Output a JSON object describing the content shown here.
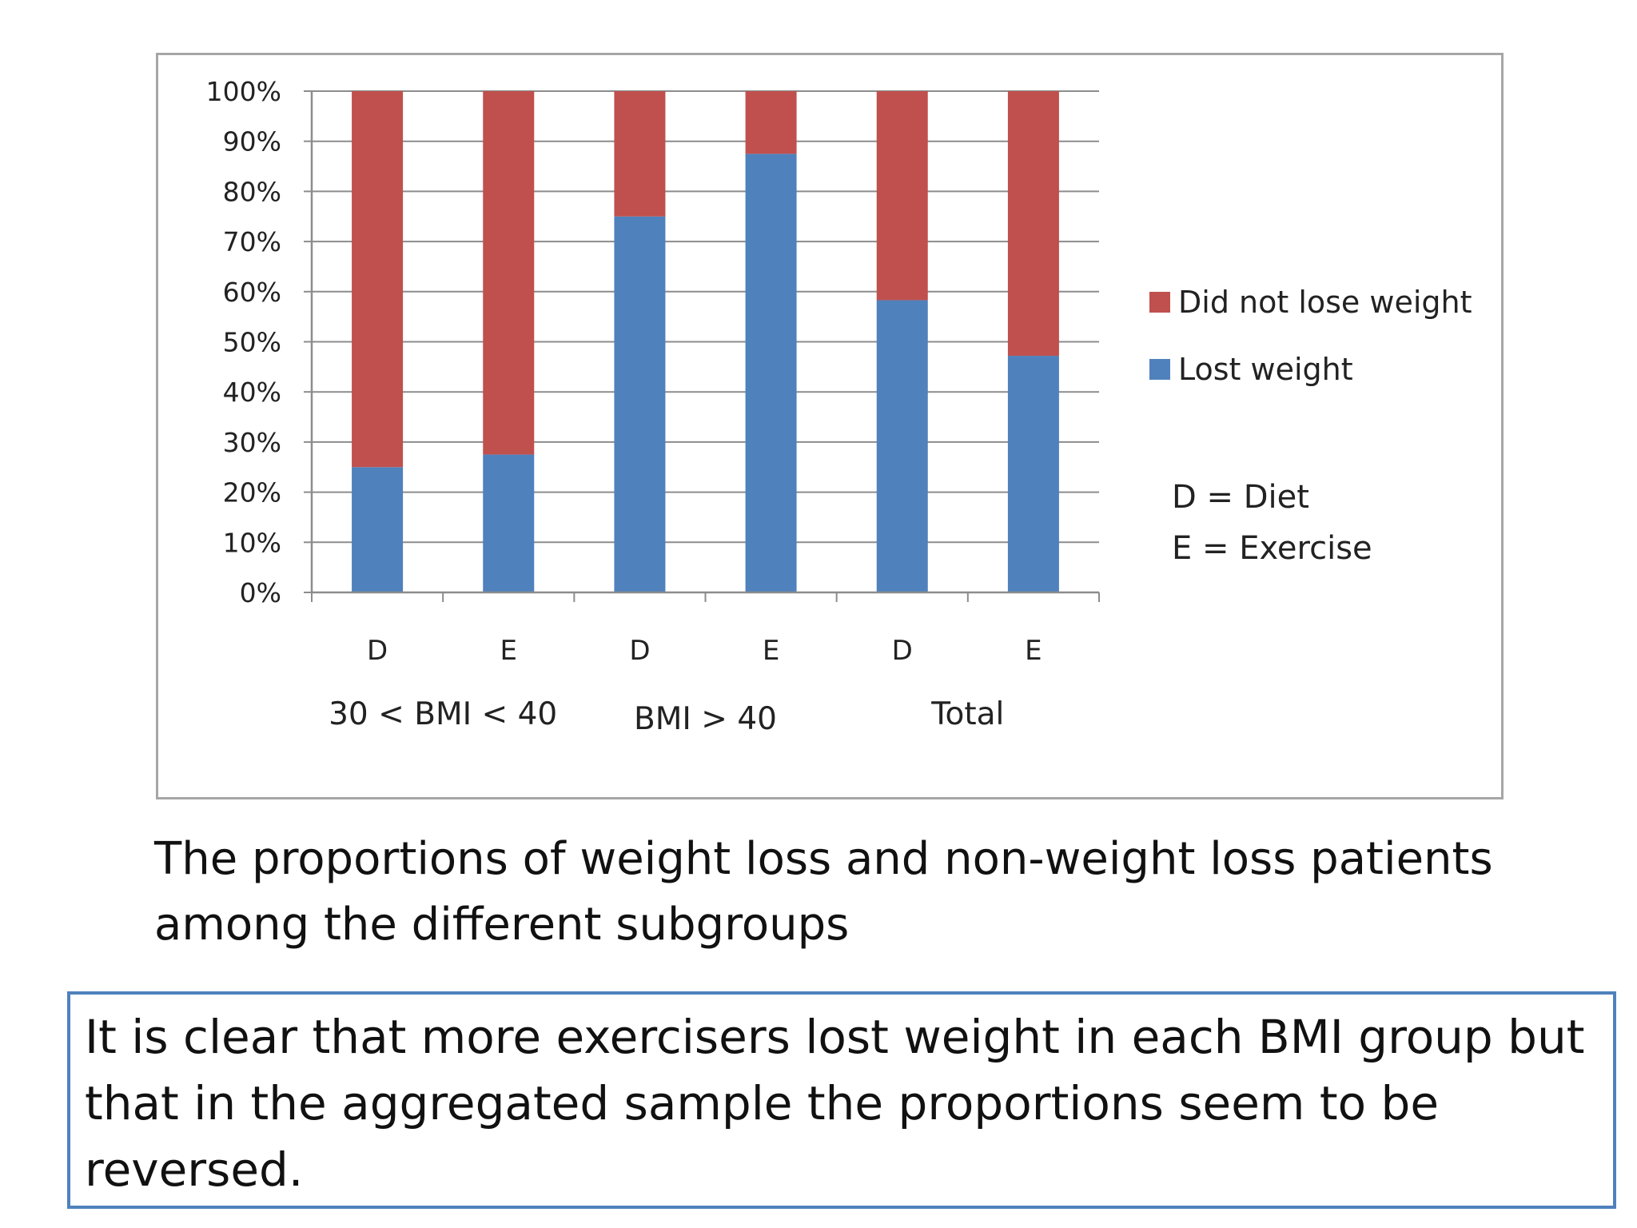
{
  "chart_data": {
    "type": "bar",
    "stacked": true,
    "percent": true,
    "categories": [
      "D",
      "E",
      "D",
      "E",
      "D",
      "E"
    ],
    "groups": [
      {
        "label": "30 < BMI < 40",
        "span": [
          0,
          1
        ]
      },
      {
        "label": "BMI > 40",
        "span": [
          2,
          3
        ]
      },
      {
        "label": "Total",
        "span": [
          4,
          5
        ]
      }
    ],
    "series": [
      {
        "name": "Lost weight",
        "color": "#4f81bd",
        "values": [
          25,
          27.5,
          75,
          87.5,
          58.3,
          47.2
        ]
      },
      {
        "name": "Did not lose weight",
        "color": "#c0504d",
        "values": [
          75,
          72.5,
          25,
          12.5,
          41.7,
          52.8
        ]
      }
    ],
    "yticks": [
      "0%",
      "10%",
      "20%",
      "30%",
      "40%",
      "50%",
      "60%",
      "70%",
      "80%",
      "90%",
      "100%"
    ],
    "ylim": [
      0,
      100
    ],
    "grid": true,
    "legend_position": "right",
    "legend_order": [
      "Did not lose weight",
      "Lost weight"
    ],
    "key_lines": [
      "D = Diet",
      "E = Exercise"
    ]
  },
  "caption_lines": [
    "The proportions of weight loss and non-weight loss patients",
    "among the different subgroups"
  ],
  "note_lines": [
    "It is clear that more exercisers lost weight in each BMI group but",
    "that in the aggregated sample the proportions seem to be",
    "reversed."
  ]
}
